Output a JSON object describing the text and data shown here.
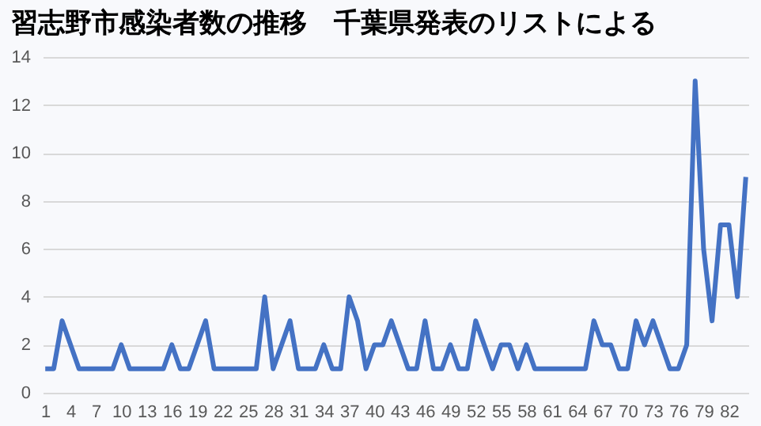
{
  "chart_data": {
    "type": "line",
    "title": "習志野市感染者数の推移　千葉県発表のリストによる",
    "categories": [
      "1",
      null,
      null,
      "4",
      null,
      null,
      "7",
      null,
      null,
      "10",
      null,
      null,
      "13",
      null,
      null,
      "16",
      null,
      null,
      "19",
      null,
      null,
      "22",
      null,
      null,
      "25",
      null,
      null,
      "28",
      null,
      null,
      "31",
      null,
      null,
      "34",
      null,
      null,
      "37",
      null,
      null,
      "40",
      null,
      null,
      "43",
      null,
      null,
      "46",
      null,
      null,
      "49",
      null,
      null,
      "52",
      null,
      null,
      "55",
      null,
      null,
      "58",
      null,
      null,
      "61",
      null,
      null,
      "64",
      null,
      null,
      "67",
      null,
      null,
      "70",
      null,
      null,
      "73",
      null,
      null,
      "76",
      null,
      null,
      "79",
      null,
      null,
      "82",
      null,
      null
    ],
    "series": [
      {
        "color": "#4472c4",
        "values": [
          1,
          1,
          3,
          2,
          1,
          1,
          1,
          1,
          1,
          2,
          1,
          1,
          1,
          1,
          1,
          2,
          1,
          1,
          2,
          3,
          1,
          1,
          1,
          1,
          1,
          1,
          4,
          1,
          2,
          3,
          1,
          1,
          1,
          2,
          1,
          1,
          4,
          3,
          1,
          2,
          2,
          3,
          2,
          1,
          1,
          3,
          1,
          1,
          2,
          1,
          1,
          3,
          2,
          1,
          2,
          2,
          1,
          2,
          1,
          1,
          1,
          1,
          1,
          1,
          1,
          3,
          2,
          2,
          1,
          1,
          3,
          2,
          3,
          2,
          1,
          1,
          2,
          13,
          6,
          3,
          7,
          7,
          4,
          9
        ]
      }
    ],
    "ylim": [
      0,
      14
    ],
    "yticks": [
      0,
      2,
      4,
      6,
      8,
      10,
      12,
      14
    ],
    "grid": "y"
  }
}
